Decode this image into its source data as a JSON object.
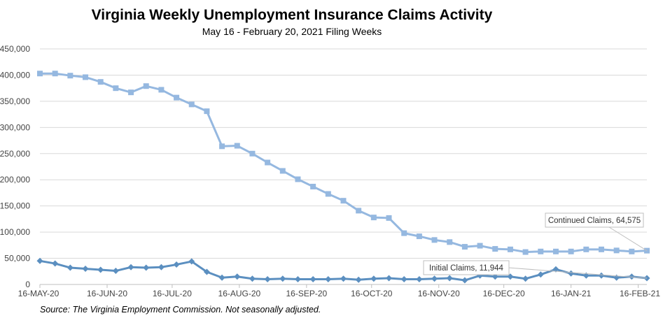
{
  "chart_data": {
    "type": "line",
    "title": "Virginia Weekly Unemployment Insurance Claims Activity",
    "subtitle": "May 16 - February 20, 2021 Filing Weeks",
    "source": "Source: The Virginia Employment Commission. Not seasonally adjusted.",
    "ylim": [
      0,
      450000
    ],
    "yticks": [
      "0",
      "50,000",
      "100,000",
      "150,000",
      "200,000",
      "250,000",
      "300,000",
      "350,000",
      "400,000",
      "450,000"
    ],
    "ytick_values": [
      0,
      50000,
      100000,
      150000,
      200000,
      250000,
      300000,
      350000,
      400000,
      450000
    ],
    "xtick_labels": [
      "16-MAY-20",
      "16-JUN-20",
      "16-JUL-20",
      "16-AUG-20",
      "16-SEP-20",
      "16-OCT-20",
      "16-NOV-20",
      "16-DEC-20",
      "16-JAN-21",
      "16-FEB-21"
    ],
    "xtick_days": [
      0,
      31,
      61,
      92,
      123,
      153,
      184,
      214,
      245,
      276
    ],
    "x_range_days": [
      0,
      280
    ],
    "grid": true,
    "series": [
      {
        "name": "Continued Claims",
        "color": "#95b8e0",
        "marker": "square",
        "callout": "Continued Claims, 64,575",
        "days": [
          0,
          7,
          14,
          21,
          28,
          35,
          42,
          49,
          56,
          63,
          70,
          77,
          84,
          91,
          98,
          105,
          112,
          119,
          126,
          133,
          140,
          147,
          154,
          161,
          168,
          175,
          182,
          189,
          196,
          203,
          210,
          217,
          224,
          231,
          238,
          245,
          252,
          259,
          266,
          273,
          280
        ],
        "values": [
          403000,
          403000,
          399000,
          396000,
          387000,
          375000,
          367000,
          379000,
          372000,
          357000,
          344000,
          331000,
          264000,
          265000,
          250000,
          233000,
          217000,
          201000,
          187000,
          173000,
          160000,
          141000,
          128000,
          127000,
          98000,
          92000,
          85000,
          81000,
          72000,
          74000,
          68000,
          67000,
          62000,
          63000,
          63000,
          63000,
          67000,
          67000,
          65000,
          63000,
          64575
        ]
      },
      {
        "name": "Initial Claims",
        "color": "#5b8fc0",
        "marker": "diamond",
        "callout": "Initial Claims, 11,944",
        "days": [
          0,
          7,
          14,
          21,
          28,
          35,
          42,
          49,
          56,
          63,
          70,
          77,
          84,
          91,
          98,
          105,
          112,
          119,
          126,
          133,
          140,
          147,
          154,
          161,
          168,
          175,
          182,
          189,
          196,
          203,
          210,
          217,
          224,
          231,
          238,
          245,
          252,
          259,
          266,
          273,
          280
        ],
        "values": [
          45000,
          40000,
          32000,
          30000,
          28000,
          26000,
          33000,
          32000,
          33000,
          38000,
          44000,
          24000,
          13000,
          15000,
          11000,
          10000,
          11000,
          10000,
          10000,
          10000,
          11000,
          9000,
          11000,
          12000,
          10000,
          10000,
          11000,
          12000,
          8000,
          17000,
          15000,
          15000,
          11000,
          19000,
          29000,
          21000,
          17000,
          17000,
          13000,
          15000,
          11944
        ]
      }
    ]
  }
}
